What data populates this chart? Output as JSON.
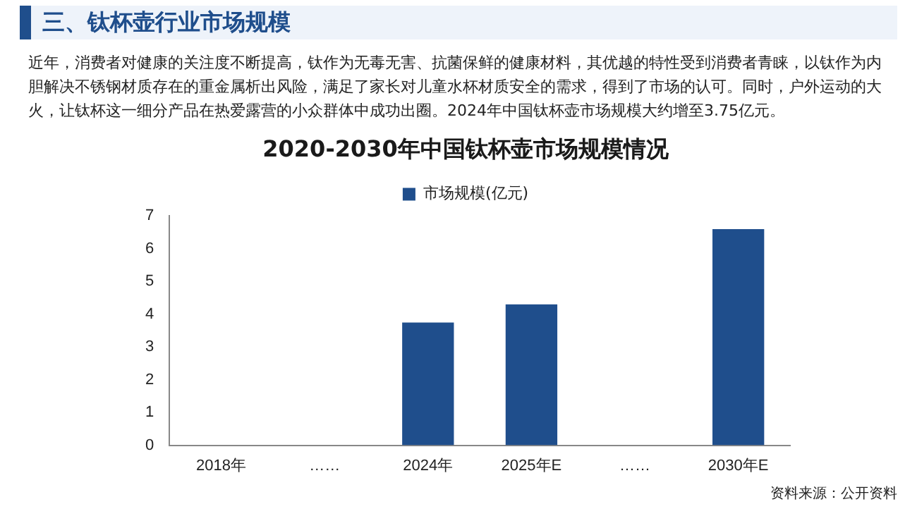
{
  "chart_data": {
    "type": "bar",
    "title": "2020-2030年中国钛杯壶市场规模情况",
    "categories": [
      "2018年",
      "……",
      "2024年",
      "2025年E",
      "……",
      "2030年E"
    ],
    "series": [
      {
        "name": "市场规模(亿元)",
        "color": "#1f4e8c",
        "values": [
          null,
          null,
          3.75,
          4.3,
          null,
          6.6
        ]
      }
    ],
    "ylim": [
      0,
      7
    ],
    "yticks": [
      0,
      1,
      2,
      3,
      4,
      5,
      6,
      7
    ],
    "grid": false,
    "legend": "top",
    "annotations": [
      "三、钛杯壶行业市场规模",
      "近年，消费者对健康的关注度不断提高，钛作为无毒无害、抗菌保鲜的健康材料，其优越的特性受到消费者青睐，以钛作为内胆解决不锈钢材质存在的重金属析出风险，满足了家长对儿童水杯材质安全的需求，得到了市场的认可。同时，户外运动的大火，让钛杯这一细分产品在热爱露营的小众群体中成功出圈。2024年中国钛杯壶市场规模大约增至3.75亿元。",
      "资料来源：公开资料"
    ]
  }
}
